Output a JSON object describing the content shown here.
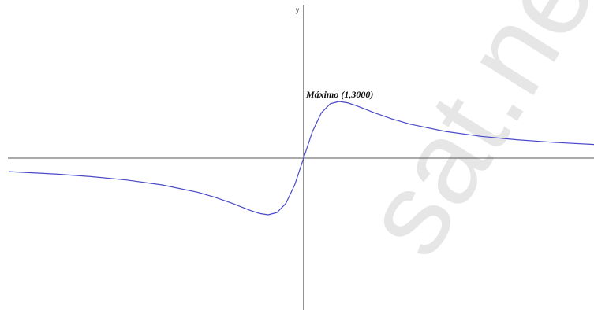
{
  "chart_data": {
    "type": "line",
    "y_label": "y",
    "annotation": "Máximo (1,3000)",
    "watermark": "sat.ne",
    "xlim": [
      -8.33,
      8.18
    ],
    "ylim": [
      -8042,
      8375
    ],
    "x": [
      -8.3,
      -7,
      -6,
      -5,
      -4,
      -3,
      -2.5,
      -2,
      -1.75,
      -1.5,
      -1.25,
      -1,
      -0.75,
      -0.5,
      -0.25,
      0,
      0.25,
      0.5,
      0.75,
      1,
      1.25,
      1.5,
      1.75,
      2,
      2.5,
      3,
      4,
      5,
      6,
      7,
      8.2
    ],
    "series": [
      {
        "color": "#4a4ac8",
        "values": [
          -713,
          -840,
          -973,
          -1154,
          -1412,
          -1800,
          -2069,
          -2400,
          -2585,
          -2769,
          -2927,
          -3000,
          -2880,
          -2400,
          -1412,
          0,
          1412,
          2400,
          2880,
          3000,
          2927,
          2769,
          2585,
          2400,
          2069,
          1800,
          1412,
          1154,
          973,
          840,
          721
        ]
      }
    ]
  }
}
